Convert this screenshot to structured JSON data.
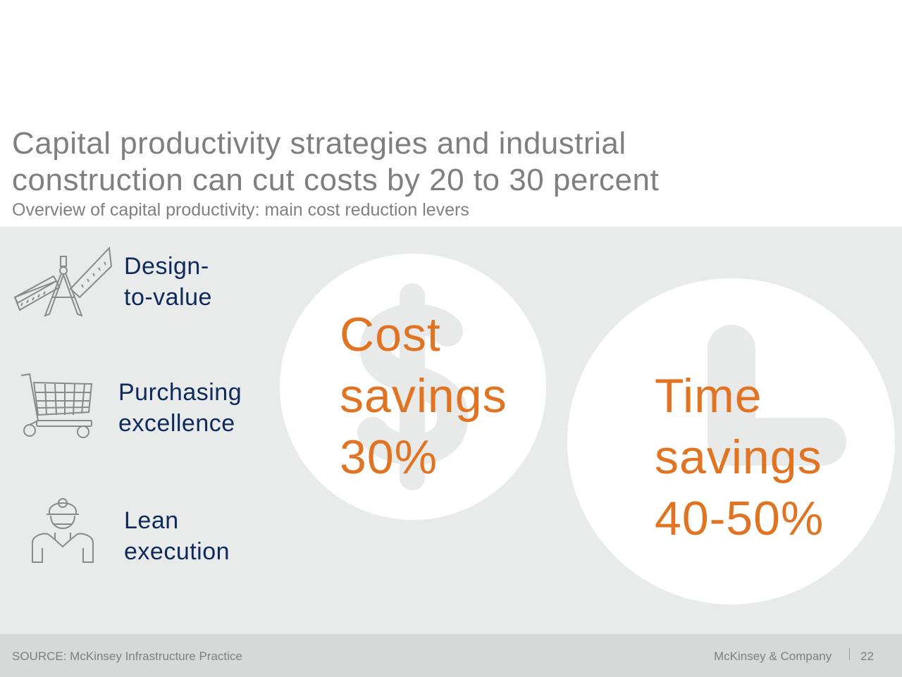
{
  "title": {
    "line1": "Capital productivity strategies and industrial",
    "line2": "construction can cut costs by 20 to 30 percent"
  },
  "subtitle": "Overview of capital productivity: main cost reduction levers",
  "levers": [
    {
      "line1": "Design-",
      "line2": "to-value",
      "icon": "drafting-tools-icon"
    },
    {
      "line1": "Purchasing",
      "line2": "excellence",
      "icon": "shopping-cart-icon"
    },
    {
      "line1": "Lean",
      "line2": "execution",
      "icon": "construction-worker-icon"
    }
  ],
  "cost": {
    "line1": "Cost",
    "line2": "savings",
    "line3": "30%",
    "icon": "dollar-sign-icon"
  },
  "time": {
    "line1": "Time",
    "line2": "savings",
    "line3": "40-50%",
    "icon": "clock-hands-icon"
  },
  "footer": {
    "source": "SOURCE: McKinsey Infrastructure Practice",
    "brand": "McKinsey & Company",
    "page": "22"
  },
  "colors": {
    "accent": "#e07423",
    "navy": "#0e2a5c",
    "panel": "#e9ebea",
    "footer": "#d5d9d8",
    "gray_text": "#7f7f7f"
  }
}
